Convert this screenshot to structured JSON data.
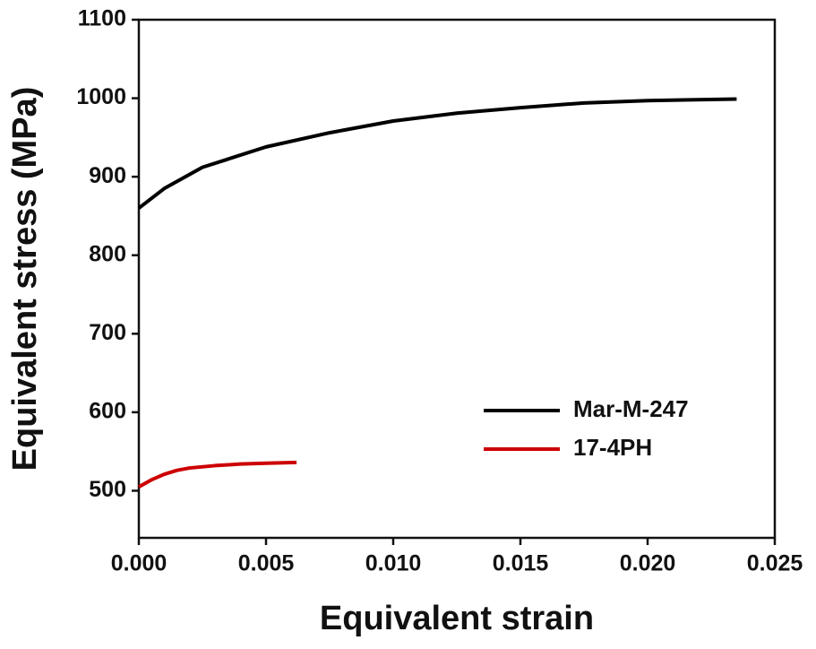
{
  "chart_data": {
    "type": "line",
    "x_label": "Equivalent strain",
    "y_label": "Equivalent stress (MPa)",
    "xlim": [
      0,
      0.025
    ],
    "xticks": [
      {
        "value": 0,
        "label": "0.000"
      },
      {
        "value": 0.005,
        "label": "0.005"
      },
      {
        "value": 0.01,
        "label": "0.010"
      },
      {
        "value": 0.015,
        "label": "0.015"
      },
      {
        "value": 0.02,
        "label": "0.020"
      },
      {
        "value": 0.025,
        "label": "0.025"
      }
    ],
    "ylim": [
      440,
      1100
    ],
    "yticks": [
      500,
      600,
      700,
      800,
      900,
      1000,
      1100
    ],
    "legend": "right",
    "series": [
      {
        "name": "Mar-M-247",
        "color": "#000000",
        "x": [
          0,
          0.001,
          0.0025,
          0.005,
          0.0075,
          0.01,
          0.0125,
          0.015,
          0.0175,
          0.02,
          0.0235
        ],
        "values": [
          860,
          885,
          912,
          938,
          956,
          971,
          981,
          988,
          994,
          997,
          999
        ]
      },
      {
        "name": "17-4PH",
        "color": "#cc0000",
        "x": [
          0,
          0.0005,
          0.001,
          0.0015,
          0.002,
          0.003,
          0.004,
          0.005,
          0.0062
        ],
        "values": [
          505,
          514,
          521,
          526,
          529,
          532,
          534,
          535,
          536
        ]
      }
    ]
  }
}
